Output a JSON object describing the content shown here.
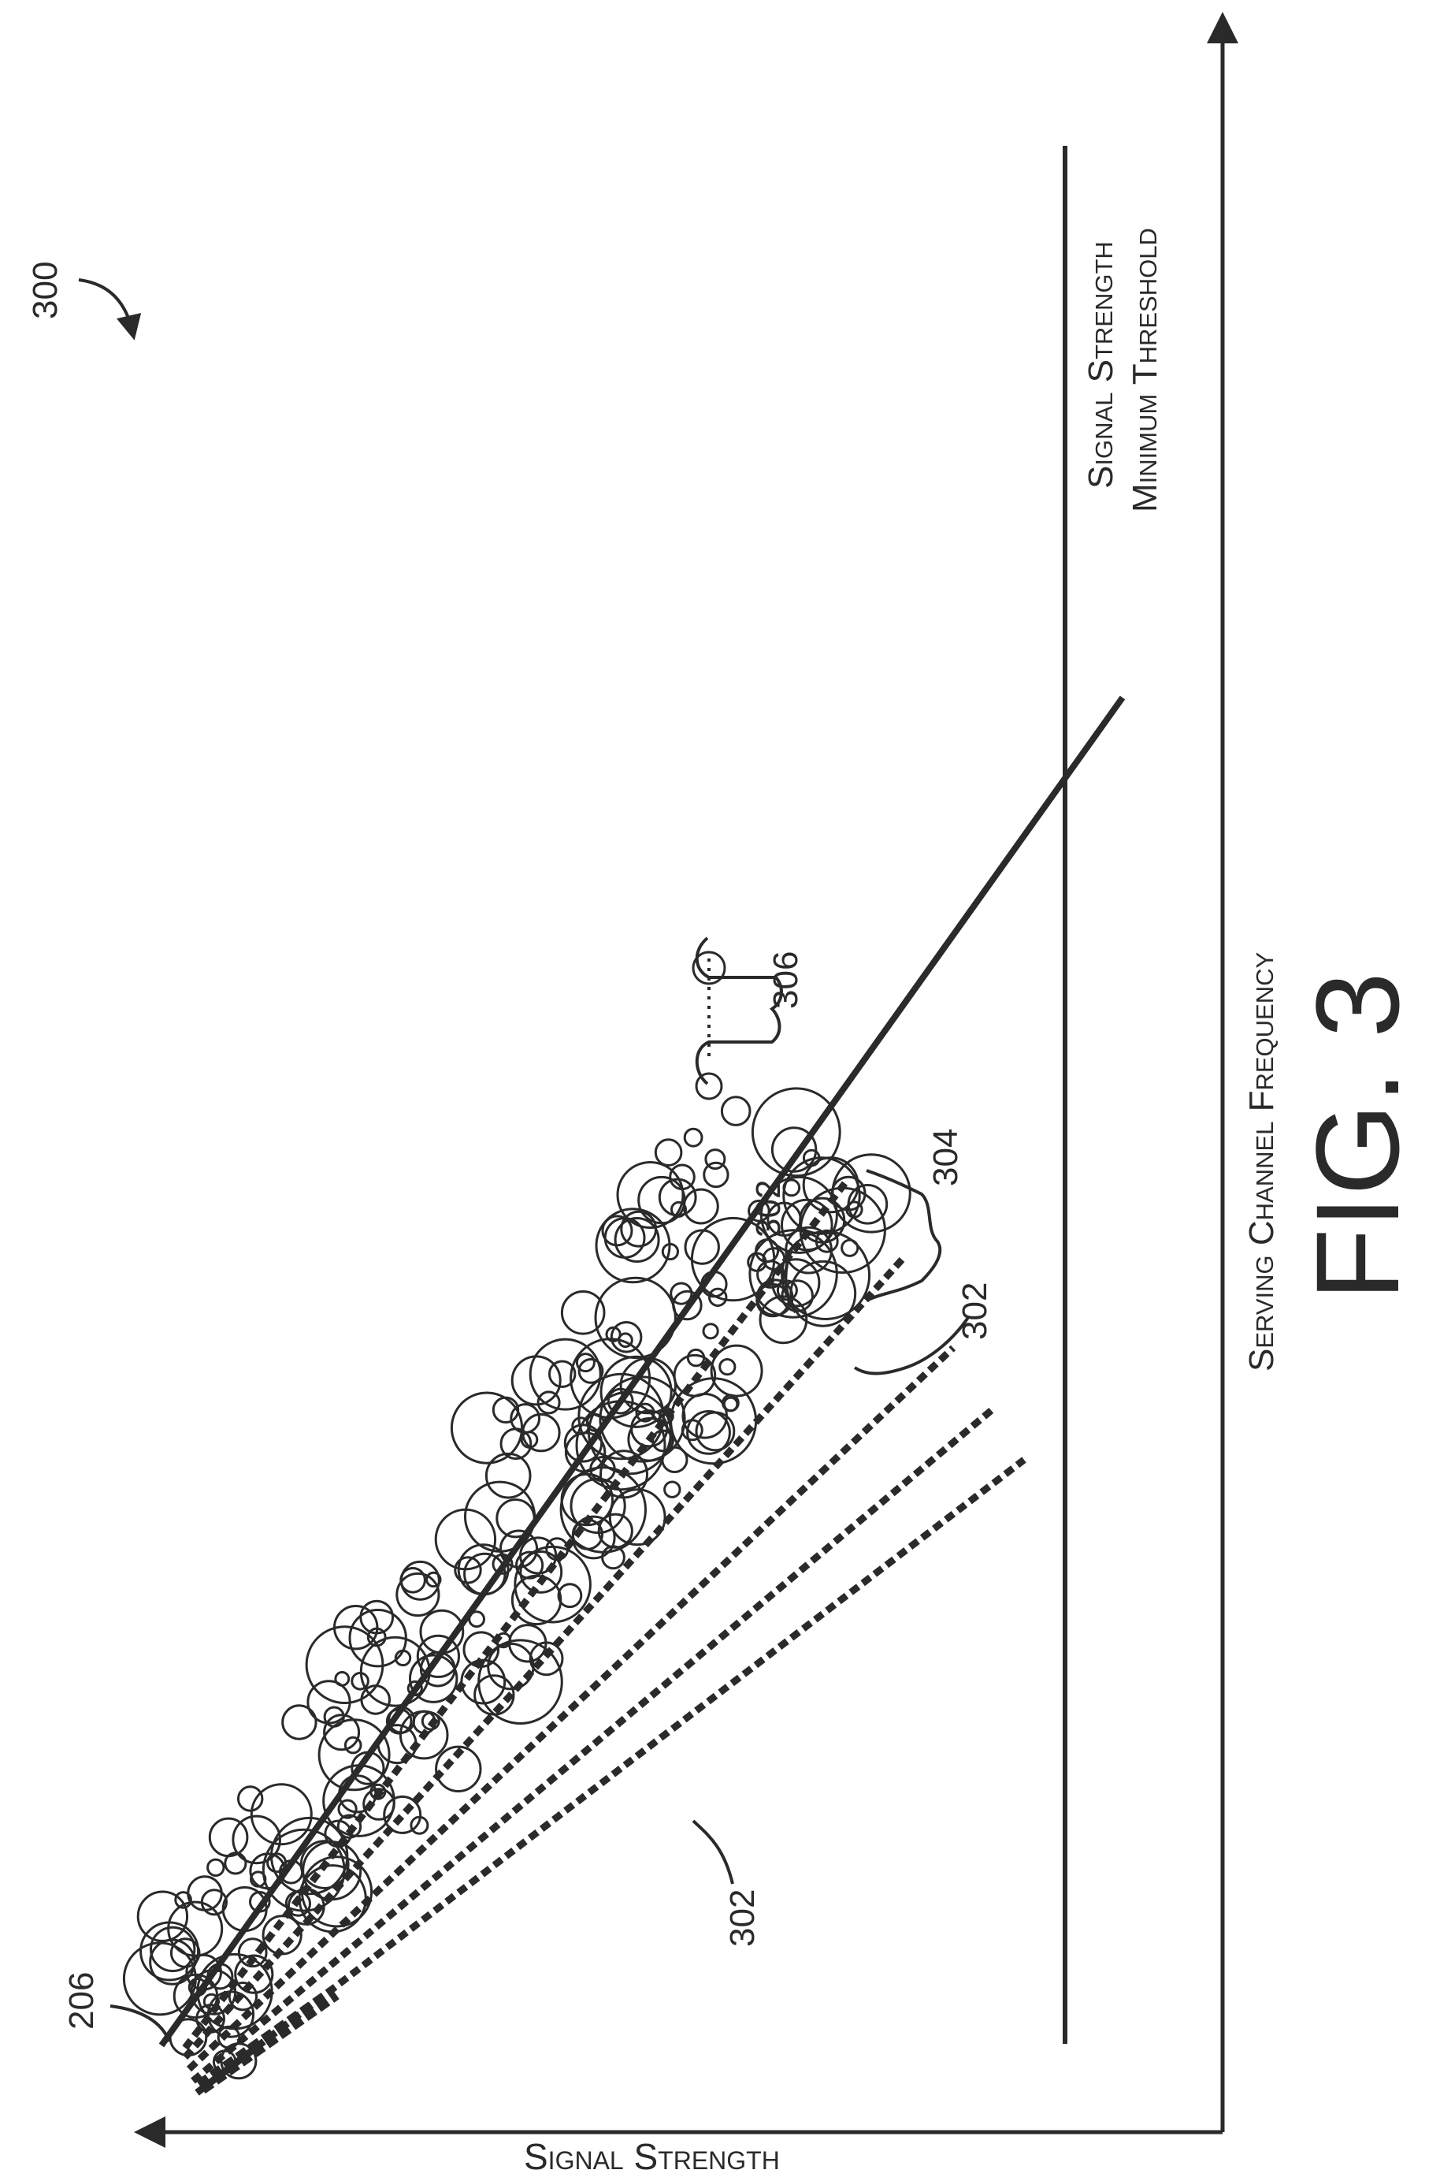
{
  "figure": {
    "ref_label": "300",
    "fig_label": "FIG. 3",
    "x_axis_label": "Signal Strength",
    "y_axis_label": "Serving Channel Frequency",
    "threshold_label_line1": "Signal Strength",
    "threshold_label_line2": "Minimum Threshold",
    "origin_ref": "206",
    "dashed_ref_a": "302",
    "dashed_ref_b": "302",
    "dashed_ref_c": "302",
    "group_ref": "304",
    "cluster_ref": "306"
  },
  "colors": {
    "ink": "#2a2a2a",
    "background": "#ffffff"
  }
}
